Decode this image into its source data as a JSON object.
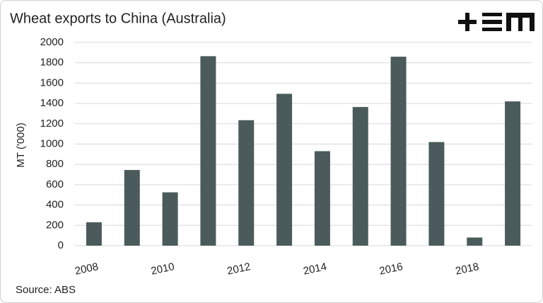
{
  "chart_data": {
    "type": "bar",
    "title": "Wheat exports to China (Australia)",
    "y_label": "MT ('000)",
    "source": "Source: ABS",
    "categories": [
      "2008",
      null,
      "2010",
      null,
      "2012",
      null,
      "2014",
      null,
      "2016",
      null,
      "2018",
      null
    ],
    "values": [
      230,
      745,
      525,
      1865,
      1235,
      1495,
      930,
      1365,
      1860,
      1020,
      80,
      1420
    ],
    "color": "#4b5b5b",
    "ylim": [
      0,
      2000
    ],
    "yticks": [
      0,
      200,
      400,
      600,
      800,
      1000,
      1200,
      1400,
      1600,
      1800,
      2000
    ],
    "grid": true
  }
}
